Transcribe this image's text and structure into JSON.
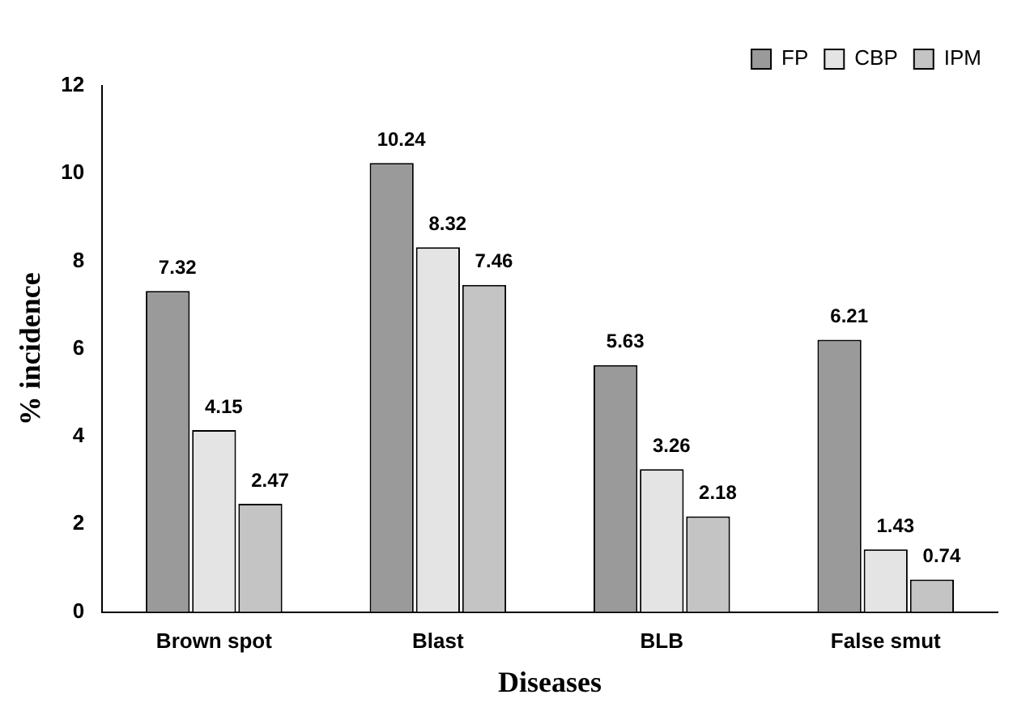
{
  "chart_data": {
    "type": "bar",
    "xlabel": "Diseases",
    "ylabel": "% incidence",
    "categories": [
      "Brown spot",
      "Blast",
      "BLB",
      "False smut"
    ],
    "series": [
      {
        "name": "FP",
        "color": "#9a9a9a",
        "values": [
          7.32,
          10.24,
          5.63,
          6.21
        ]
      },
      {
        "name": "CBP",
        "color": "#e4e4e4",
        "values": [
          4.15,
          8.32,
          3.26,
          1.43
        ]
      },
      {
        "name": "IPM",
        "color": "#c4c4c4",
        "values": [
          2.47,
          7.46,
          2.18,
          0.74
        ]
      }
    ],
    "ylim": [
      0,
      12
    ],
    "yticks": [
      0,
      2,
      4,
      6,
      8,
      10,
      12
    ],
    "grid": false,
    "legend": "top right",
    "data_labels": true
  }
}
